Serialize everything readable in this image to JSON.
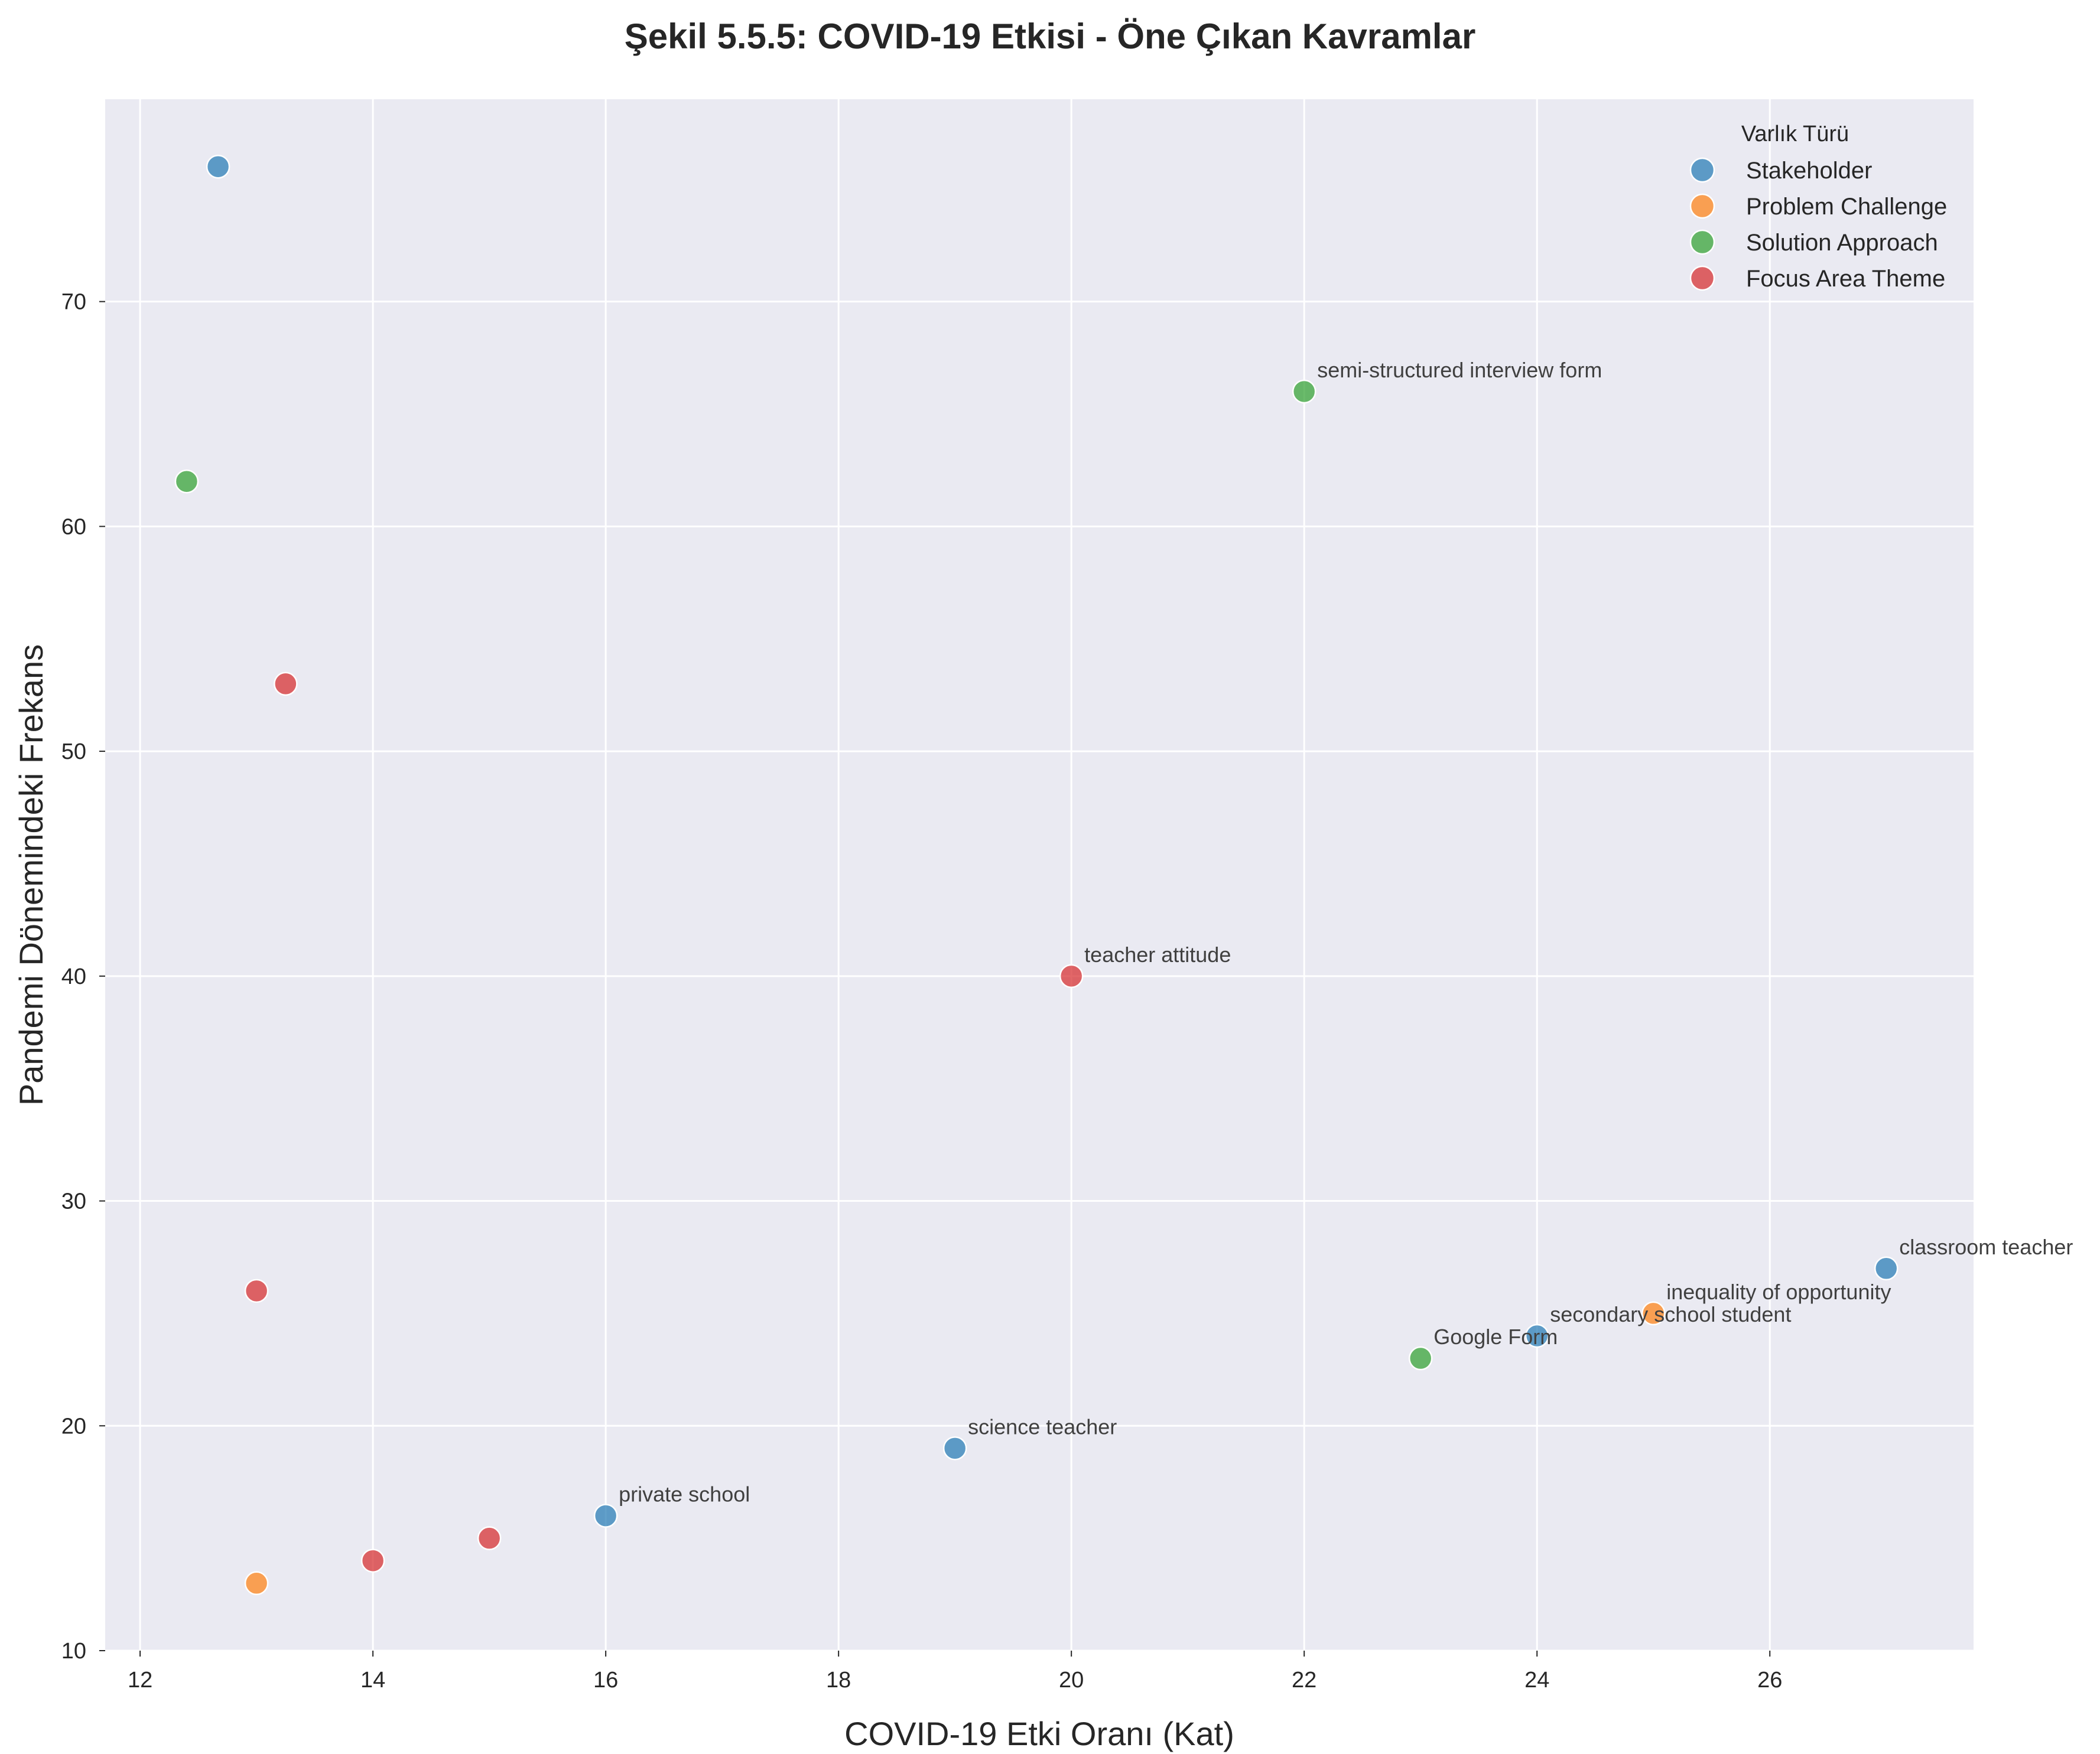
{
  "chart_data": {
    "type": "scatter",
    "title": "Şekil 5.5.5: COVID-19 Etkisi - Öne Çıkan Kavramlar",
    "xlabel": "COVID-19 Etki Oranı (Kat)",
    "ylabel": "Pandemi Dönemindeki Frekans",
    "xlim": [
      11.7,
      27.75
    ],
    "ylim": [
      10,
      79
    ],
    "xticks": [
      12,
      14,
      16,
      18,
      20,
      22,
      24,
      26
    ],
    "yticks": [
      10,
      20,
      30,
      40,
      50,
      60,
      70
    ],
    "grid": true,
    "legend": {
      "title": "Varlık Türü",
      "position": "top-right"
    },
    "series": [
      {
        "name": "Stakeholder",
        "color": "#1f77b4",
        "points": [
          {
            "x": 12.67,
            "y": 76,
            "label": ""
          },
          {
            "x": 16,
            "y": 16,
            "label": "private school"
          },
          {
            "x": 19,
            "y": 19,
            "label": "science teacher"
          },
          {
            "x": 24,
            "y": 24,
            "label": "secondary school student"
          },
          {
            "x": 27,
            "y": 27,
            "label": "classroom teacher"
          }
        ]
      },
      {
        "name": "Problem Challenge",
        "color": "#ff7f0e",
        "points": [
          {
            "x": 13,
            "y": 13,
            "label": ""
          },
          {
            "x": 25,
            "y": 25,
            "label": "inequality of opportunity"
          }
        ]
      },
      {
        "name": "Solution Approach",
        "color": "#2ca02c",
        "points": [
          {
            "x": 12.4,
            "y": 62,
            "label": ""
          },
          {
            "x": 22,
            "y": 66,
            "label": "semi-structured interview form"
          },
          {
            "x": 23,
            "y": 23,
            "label": "Google Form"
          }
        ]
      },
      {
        "name": "Focus Area Theme",
        "color": "#d62728",
        "points": [
          {
            "x": 13.25,
            "y": 53,
            "label": ""
          },
          {
            "x": 13,
            "y": 26,
            "label": ""
          },
          {
            "x": 14,
            "y": 14,
            "label": ""
          },
          {
            "x": 15,
            "y": 15,
            "label": ""
          },
          {
            "x": 20,
            "y": 40,
            "label": "teacher attitude"
          }
        ]
      }
    ]
  }
}
